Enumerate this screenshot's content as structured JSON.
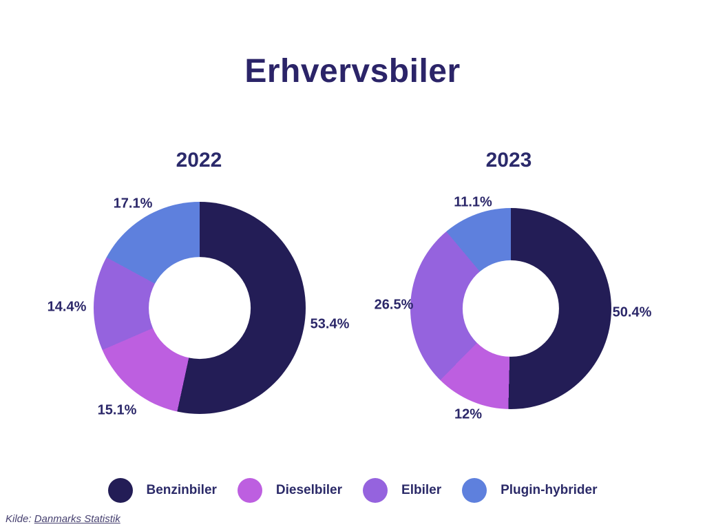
{
  "page": {
    "title": "Erhvervsbiler"
  },
  "slice_colors": [
    "#231d56",
    "#bd5fe0",
    "#9563de",
    "#5e80dd"
  ],
  "text_color": "#2b2468",
  "chart_data": [
    {
      "type": "pie",
      "variant": "donut",
      "title": "2022",
      "categories": [
        "Benzinbiler",
        "Dieselbiler",
        "Elbiler",
        "Plugin-hybrider"
      ],
      "values": [
        53.4,
        15.1,
        14.4,
        17.1
      ],
      "labels": [
        "53.4%",
        "15.1%",
        "14.4%",
        "17.1%"
      ],
      "colors": [
        "#231d56",
        "#bd5fe0",
        "#9563de",
        "#5e80dd"
      ],
      "start_angle_deg": 0,
      "direction": "clockwise",
      "inner_radius_ratio": 0.48
    },
    {
      "type": "pie",
      "variant": "donut",
      "title": "2023",
      "categories": [
        "Benzinbiler",
        "Dieselbiler",
        "Elbiler",
        "Plugin-hybrider"
      ],
      "values": [
        50.4,
        12,
        26.5,
        11.1
      ],
      "labels": [
        "50.4%",
        "12%",
        "26.5%",
        "11.1%"
      ],
      "colors": [
        "#231d56",
        "#bd5fe0",
        "#9563de",
        "#5e80dd"
      ],
      "start_angle_deg": 0,
      "direction": "clockwise",
      "inner_radius_ratio": 0.48
    }
  ],
  "legend": [
    {
      "label": "Benzinbiler",
      "color": "#231d56"
    },
    {
      "label": "Dieselbiler",
      "color": "#bd5fe0"
    },
    {
      "label": "Elbiler",
      "color": "#9563de"
    },
    {
      "label": "Plugin-hybrider",
      "color": "#5e80dd"
    }
  ],
  "source": {
    "prefix": "Kilde: ",
    "link_text": "Danmarks Statistik"
  }
}
